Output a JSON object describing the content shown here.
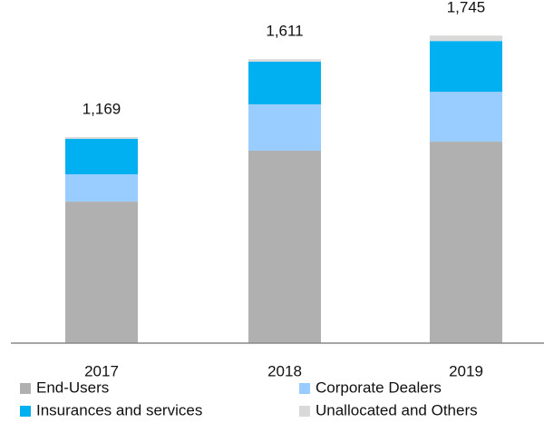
{
  "chart_data": {
    "type": "stacked_bar",
    "categories": [
      "2017",
      "2018",
      "2019"
    ],
    "series": [
      {
        "name": "End-Users",
        "color": "#b0b0b0",
        "values": [
          803,
          1092,
          1143
        ]
      },
      {
        "name": "Corporate Dealers",
        "color": "#99ccff",
        "values": [
          155,
          263,
          283
        ]
      },
      {
        "name": "Insurances and services",
        "color": "#00b0f0",
        "values": [
          201,
          242,
          288
        ]
      },
      {
        "name": "Unallocated and Others",
        "color": "#d9d9d9",
        "values": [
          10,
          14,
          31
        ]
      }
    ],
    "totals": [
      1169,
      1611,
      1745
    ],
    "total_labels": [
      "1,169",
      "1,611",
      "1,745"
    ],
    "ylim": [
      0,
      1800
    ]
  }
}
